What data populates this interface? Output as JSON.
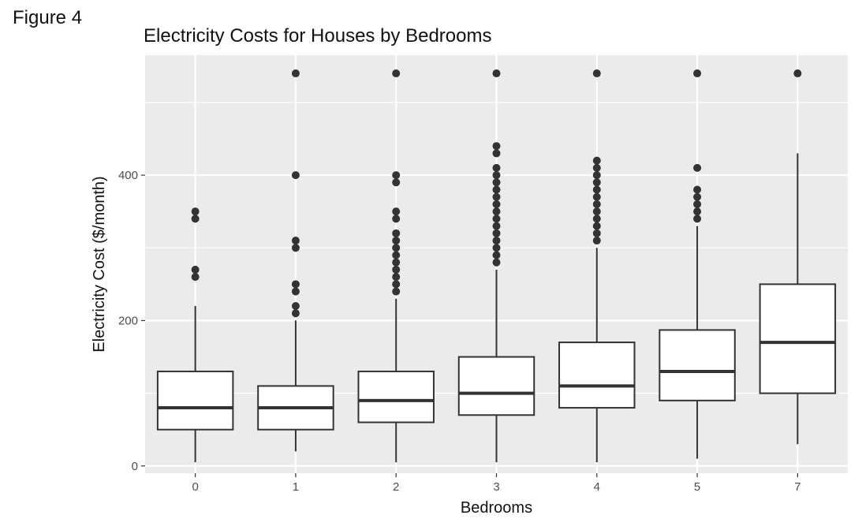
{
  "figure_label": "Figure 4",
  "chart_data": {
    "type": "boxplot",
    "title": "Electricity Costs for Houses by Bedrooms",
    "xlabel": "Bedrooms",
    "ylabel": "Electricity Cost ($/month)",
    "categories": [
      "0",
      "1",
      "2",
      "3",
      "4",
      "5",
      "7"
    ],
    "ylim": [
      -10,
      565
    ],
    "yticks": [
      0,
      200,
      400
    ],
    "grid": true,
    "legend": "none",
    "colors": {
      "panel": "#ebebeb",
      "grid": "#ffffff",
      "box_fill": "#ffffff",
      "box_stroke": "#333333",
      "median": "#333333",
      "outlier": "#333333"
    },
    "boxes": [
      {
        "category": "0",
        "whisker_low": 5,
        "q1": 50,
        "median": 80,
        "q3": 130,
        "whisker_high": 220,
        "outliers": [
          260,
          270,
          340,
          350
        ]
      },
      {
        "category": "1",
        "whisker_low": 20,
        "q1": 50,
        "median": 80,
        "q3": 110,
        "whisker_high": 200,
        "outliers": [
          210,
          220,
          240,
          250,
          300,
          310,
          400,
          540
        ]
      },
      {
        "category": "2",
        "whisker_low": 5,
        "q1": 60,
        "median": 90,
        "q3": 130,
        "whisker_high": 230,
        "outliers": [
          240,
          250,
          260,
          270,
          280,
          290,
          300,
          310,
          320,
          340,
          350,
          390,
          400,
          540
        ]
      },
      {
        "category": "3",
        "whisker_low": 5,
        "q1": 70,
        "median": 100,
        "q3": 150,
        "whisker_high": 270,
        "outliers": [
          280,
          290,
          300,
          310,
          320,
          330,
          340,
          350,
          360,
          370,
          380,
          390,
          400,
          410,
          430,
          440,
          540
        ]
      },
      {
        "category": "4",
        "whisker_low": 5,
        "q1": 80,
        "median": 110,
        "q3": 170,
        "whisker_high": 300,
        "outliers": [
          310,
          320,
          330,
          340,
          350,
          360,
          370,
          380,
          390,
          400,
          410,
          420,
          540
        ]
      },
      {
        "category": "5",
        "whisker_low": 10,
        "q1": 90,
        "median": 130,
        "q3": 187,
        "whisker_high": 330,
        "outliers": [
          340,
          350,
          360,
          370,
          380,
          410,
          540
        ]
      },
      {
        "category": "7",
        "whisker_low": 30,
        "q1": 100,
        "median": 170,
        "q3": 250,
        "whisker_high": 430,
        "outliers": [
          540
        ]
      }
    ]
  }
}
